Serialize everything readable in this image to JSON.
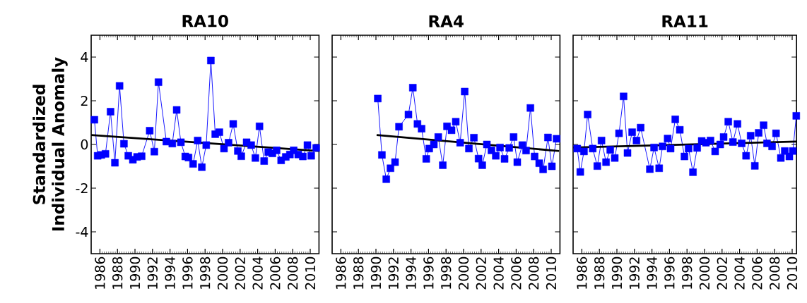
{
  "chart_data": [
    {
      "type": "line",
      "title": "RA10",
      "ylabel": "Standardized Individual Anomaly",
      "xlim": [
        1985,
        2011
      ],
      "ylim": [
        -5,
        5
      ],
      "xticks": [
        1986,
        1988,
        1990,
        1992,
        1994,
        1996,
        1998,
        2000,
        2002,
        2004,
        2006,
        2008,
        2010
      ],
      "yticks": [
        -4,
        -2,
        0,
        2,
        4
      ],
      "series": [
        {
          "color": "#0000ff",
          "marker": "square",
          "x": [
            1985.37,
            1985.74,
            1986.16,
            1986.63,
            1987.21,
            1987.71,
            1988.24,
            1988.74,
            1989.24,
            1989.76,
            1990.24,
            1990.76,
            1991.68,
            1992.21,
            1992.68,
            1993.58,
            1994.26,
            1994.76,
            1995.24,
            1995.74,
            1996.11,
            1996.63,
            1997.16,
            1997.63,
            1998.13,
            1998.66,
            1999.16,
            1999.63,
            2000.16,
            2000.68,
            2001.21,
            2001.74,
            2002.13,
            2002.74,
            2003.26,
            2003.74,
            2004.21,
            2004.74,
            2005.21,
            2005.68,
            2006.16,
            2006.68,
            2007.21,
            2007.68,
            2008.11,
            2008.63,
            2009.16,
            2009.68,
            2010.11,
            2010.68
          ],
          "values": [
            1.13,
            -0.52,
            -0.48,
            -0.43,
            1.5,
            -0.84,
            2.68,
            0.03,
            -0.52,
            -0.7,
            -0.57,
            -0.54,
            0.63,
            -0.33,
            2.85,
            0.13,
            0.04,
            1.58,
            0.1,
            -0.55,
            -0.6,
            -0.89,
            0.18,
            -1.04,
            -0.03,
            3.84,
            0.47,
            0.56,
            -0.19,
            0.08,
            0.94,
            -0.3,
            -0.54,
            0.1,
            -0.03,
            -0.62,
            0.83,
            -0.76,
            -0.35,
            -0.41,
            -0.27,
            -0.73,
            -0.57,
            -0.46,
            -0.27,
            -0.46,
            -0.55,
            -0.03,
            -0.52,
            -0.16
          ]
        },
        {
          "color": "#000000",
          "marker": "none",
          "x": [
            1985,
            2011
          ],
          "values": [
            0.43,
            -0.3
          ]
        }
      ]
    },
    {
      "type": "line",
      "title": "RA4",
      "xlim": [
        1985,
        2011
      ],
      "ylim": [
        -5,
        5
      ],
      "xticks": [
        1986,
        1988,
        1990,
        1992,
        1994,
        1996,
        1998,
        2000,
        2002,
        2004,
        2006,
        2008,
        2010
      ],
      "yticks": [
        -4,
        -2,
        0,
        2,
        4
      ],
      "tick_labels": "x",
      "series": [
        {
          "color": "#0000ff",
          "marker": "square",
          "x": [
            1990.21,
            1990.68,
            1991.18,
            1991.66,
            1992.18,
            1992.63,
            1993.71,
            1994.21,
            1994.74,
            1995.21,
            1995.74,
            1996.08,
            1996.61,
            1997.11,
            1997.63,
            1998.11,
            1998.63,
            1999.11,
            1999.61,
            2000.13,
            2000.61,
            2001.18,
            2001.71,
            2002.13,
            2002.66,
            2003.18,
            2003.68,
            2004.16,
            2004.68,
            2005.21,
            2005.71,
            2006.13,
            2006.71,
            2007.13,
            2007.63,
            2008.11,
            2008.63,
            2009.08,
            2009.63,
            2010.08,
            2010.61
          ],
          "values": [
            2.1,
            -0.48,
            -1.59,
            -1.09,
            -0.81,
            0.81,
            1.37,
            2.6,
            0.94,
            0.72,
            -0.66,
            -0.19,
            0.0,
            0.34,
            -0.95,
            0.83,
            0.65,
            1.04,
            0.08,
            2.42,
            -0.19,
            0.31,
            -0.65,
            -0.95,
            0.0,
            -0.27,
            -0.52,
            -0.14,
            -0.66,
            -0.16,
            0.34,
            -0.81,
            -0.03,
            -0.28,
            1.67,
            -0.55,
            -0.86,
            -1.14,
            0.32,
            -1.0,
            0.26
          ]
        },
        {
          "color": "#000000",
          "marker": "none",
          "x": [
            1990.08,
            2010.9
          ],
          "values": [
            0.43,
            -0.3
          ]
        }
      ]
    },
    {
      "type": "line",
      "title": "RA11",
      "xlim": [
        1985,
        2010.5
      ],
      "ylim": [
        -5,
        5
      ],
      "xticks": [
        1986,
        1988,
        1990,
        1992,
        1994,
        1996,
        1998,
        2000,
        2002,
        2004,
        2006,
        2008,
        2010
      ],
      "yticks": [
        -4,
        -2,
        0,
        2,
        4
      ],
      "tick_labels": "x",
      "series": [
        {
          "color": "#0000ff",
          "marker": "square",
          "x": [
            1985.47,
            1985.82,
            1986.24,
            1986.66,
            1987.24,
            1987.76,
            1988.24,
            1988.76,
            1989.24,
            1989.76,
            1990.24,
            1990.76,
            1991.21,
            1991.74,
            1992.24,
            1992.71,
            1993.76,
            1994.24,
            1994.82,
            1995.21,
            1995.79,
            1996.13,
            1996.66,
            1997.18,
            1997.71,
            1998.18,
            1998.68,
            1999.16,
            1999.68,
            2000.16,
            2000.68,
            2001.21,
            2001.79,
            2002.18,
            2002.71,
            2003.24,
            2003.76,
            2004.24,
            2004.74,
            2005.26,
            2005.74,
            2006.18,
            2006.74,
            2007.13,
            2007.71,
            2008.16,
            2008.71,
            2009.16,
            2009.68,
            2010.08,
            2010.47
          ],
          "values": [
            -0.19,
            -1.26,
            -0.32,
            1.37,
            -0.19,
            -0.99,
            0.18,
            -0.81,
            -0.25,
            -0.62,
            0.51,
            2.2,
            -0.39,
            0.56,
            0.18,
            0.77,
            -1.13,
            -0.14,
            -1.09,
            -0.09,
            0.27,
            -0.19,
            1.15,
            0.67,
            -0.55,
            -0.19,
            -1.27,
            -0.16,
            0.16,
            0.08,
            0.18,
            -0.32,
            0.0,
            0.34,
            1.04,
            0.11,
            0.94,
            0.05,
            -0.52,
            0.4,
            -0.98,
            0.53,
            0.88,
            0.05,
            -0.09,
            0.51,
            -0.62,
            -0.3,
            -0.55,
            -0.3,
            1.31
          ]
        },
        {
          "color": "#000000",
          "marker": "none",
          "x": [
            1985,
            2010.5
          ],
          "values": [
            -0.14,
            0.13
          ]
        }
      ]
    }
  ]
}
